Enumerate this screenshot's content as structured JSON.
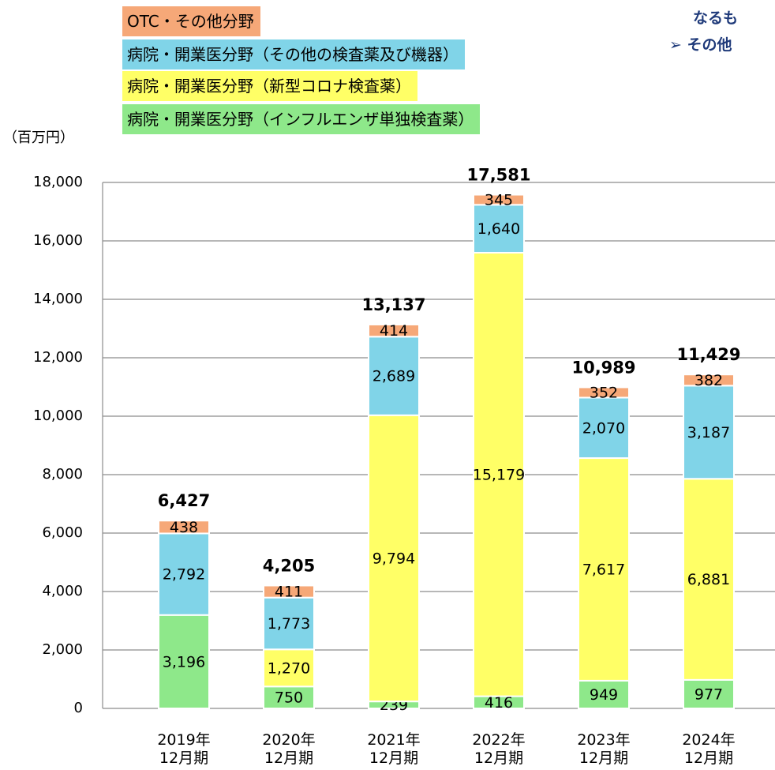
{
  "chart_data": {
    "type": "stacked_bar",
    "y_label": "（百万円）",
    "annotations": [
      "なるも",
      "➢ その他"
    ],
    "categories": [
      "2019年\n12月期",
      "2020年\n12月期",
      "2021年\n12月期",
      "2022年\n12月期",
      "2023年\n12月期",
      "2024年\n12月期"
    ],
    "series": [
      {
        "name": "病院・開業医分野（インフルエンザ単独検査薬）",
        "color": "#8ee88a",
        "values": [
          3196,
          750,
          239,
          416,
          949,
          977
        ],
        "value_labels": [
          "3,196",
          "750",
          "239",
          "416",
          "949",
          "977"
        ]
      },
      {
        "name": "病院・開業医分野（新型コロナ検査薬）",
        "color": "#ffff66",
        "values": [
          null,
          1270,
          9794,
          15179,
          7617,
          6881
        ],
        "value_labels": [
          null,
          "1,270",
          "9,794",
          "15,179",
          "7,617",
          "6,881"
        ]
      },
      {
        "name": "病院・開業医分野（その他の検査薬及び機器）",
        "color": "#80d4e8",
        "values": [
          2792,
          1773,
          2689,
          1640,
          2070,
          3187
        ],
        "value_labels": [
          "2,792",
          "1,773",
          "2,689",
          "1,640",
          "2,070",
          "3,187"
        ]
      },
      {
        "name": "OTC・その他分野",
        "color": "#f6a878",
        "values": [
          438,
          411,
          414,
          345,
          352,
          382
        ],
        "value_labels": [
          "438",
          "411",
          "414",
          "345",
          "352",
          "382"
        ]
      }
    ],
    "totals": [
      6427,
      4205,
      13137,
      17581,
      10989,
      11429
    ],
    "totals_labels": [
      "6,427",
      "4,205",
      "13,137",
      "17,581",
      "10,989",
      "11,429"
    ],
    "ylim": [
      0,
      18000
    ],
    "yticks": [
      0,
      {
        "value": 2000,
        "label": "2,000"
      },
      {
        "value": 4000,
        "label": "4,000"
      },
      {
        "value": 6000,
        "label": "6,000"
      },
      {
        "value": 8000,
        "label": "8,000"
      },
      {
        "value": 10000,
        "label": "10,000"
      },
      {
        "value": 12000,
        "label": "12,000"
      },
      {
        "value": 14000,
        "label": "14,000"
      },
      {
        "value": 16000,
        "label": "16,000"
      },
      {
        "value": 18000,
        "label": "18,000"
      }
    ],
    "grid": true
  }
}
